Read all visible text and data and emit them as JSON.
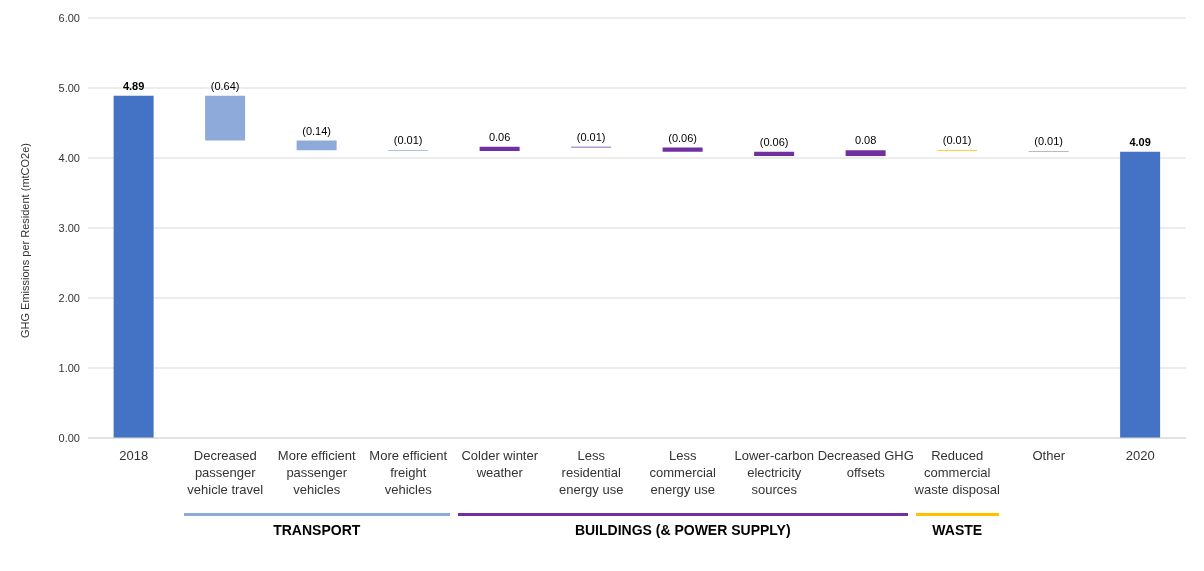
{
  "chart_data": {
    "type": "bar",
    "ylabel": "GHG Emissions per Resident (mtCO2e)",
    "categories": [
      "2018",
      "Decreased passenger vehicle travel",
      "More efficient passenger vehicles",
      "More efficient freight vehicles",
      "Colder winter weather",
      "Less residential energy use",
      "Less commercial energy use",
      "Lower-carbon electricity sources",
      "Decreased GHG offsets",
      "Reduced commercial waste disposal",
      "Other",
      "2020"
    ],
    "values": [
      4.89,
      0.64,
      0.14,
      0.01,
      0.06,
      0.01,
      0.06,
      0.06,
      0.08,
      0.01,
      0.01,
      4.09
    ],
    "base": [
      0,
      4.25,
      4.11,
      4.1,
      4.1,
      4.15,
      4.09,
      4.03,
      4.03,
      4.1,
      4.09,
      0
    ],
    "value_labels": [
      "4.89",
      "(0.64)",
      "(0.14)",
      "(0.01)",
      "0.06",
      "(0.01)",
      "(0.06)",
      "(0.06)",
      "0.08",
      "(0.01)",
      "(0.01)",
      "4.09"
    ],
    "colors": [
      "#4472c4",
      "#8eaadb",
      "#8eaadb",
      "#8eaadb",
      "#7030a0",
      "#7030a0",
      "#7030a0",
      "#7030a0",
      "#7030a0",
      "#ffc000",
      "#a5a5a5",
      "#4472c4"
    ],
    "ylim": [
      0,
      6
    ],
    "yticks": [
      {
        "value": 0,
        "label": "0.00"
      },
      {
        "value": 1,
        "label": "1.00"
      },
      {
        "value": 2,
        "label": "2.00"
      },
      {
        "value": 3,
        "label": "3.00"
      },
      {
        "value": 4,
        "label": "4.00"
      },
      {
        "value": 5,
        "label": "5.00"
      },
      {
        "value": 6,
        "label": "6.00"
      }
    ],
    "grid": "y",
    "annotations": [
      "TRANSPORT",
      "BUILDINGS (& POWER SUPPLY)",
      "WASTE"
    ]
  }
}
